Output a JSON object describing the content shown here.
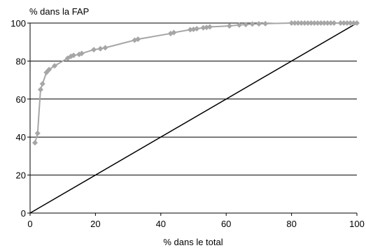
{
  "chart_data": {
    "type": "line",
    "ylabel": "% dans la FAP",
    "xlabel": "% dans le total",
    "xlim": [
      0,
      100
    ],
    "ylim": [
      0,
      100
    ],
    "x_ticks": [
      0,
      20,
      40,
      60,
      80,
      100
    ],
    "y_ticks": [
      0,
      20,
      40,
      60,
      80,
      100
    ],
    "grid": "horizontal",
    "colors": {
      "curve": "#a6a6a6",
      "diagonal": "#000000",
      "grid": "#000000"
    },
    "series": [
      {
        "values": [
          [
            1.5,
            37
          ],
          [
            2.3,
            42
          ],
          [
            3.2,
            65
          ],
          [
            3.8,
            68
          ],
          [
            5.0,
            74
          ],
          [
            5.8,
            75.5
          ],
          [
            7.5,
            77.5
          ],
          [
            11.5,
            81.5
          ],
          [
            12.5,
            82.5
          ],
          [
            13.3,
            83
          ],
          [
            15.0,
            83.5
          ],
          [
            15.8,
            84
          ],
          [
            19.5,
            86
          ],
          [
            21.5,
            86.5
          ],
          [
            23.0,
            87
          ],
          [
            32.0,
            91
          ],
          [
            33.0,
            91.5
          ],
          [
            43.0,
            94.5
          ],
          [
            44.0,
            95
          ],
          [
            49.0,
            96.5
          ],
          [
            50.0,
            96.7
          ],
          [
            51.0,
            97
          ],
          [
            53.0,
            97.5
          ],
          [
            54.0,
            97.7
          ],
          [
            55.0,
            98
          ],
          [
            61.0,
            98.5
          ],
          [
            64.0,
            99
          ],
          [
            66.0,
            99.2
          ],
          [
            68.0,
            99.5
          ],
          [
            70.0,
            99.6
          ],
          [
            72.0,
            99.7
          ],
          [
            80.0,
            100
          ],
          [
            81.0,
            100
          ],
          [
            82.0,
            100
          ],
          [
            83.0,
            100
          ],
          [
            84.0,
            100
          ],
          [
            85.0,
            100
          ],
          [
            86.0,
            100
          ],
          [
            87.0,
            100
          ],
          [
            88.0,
            100
          ],
          [
            89.0,
            100
          ],
          [
            90.0,
            100
          ],
          [
            91.0,
            100
          ],
          [
            92.0,
            100
          ],
          [
            93.0,
            100
          ],
          [
            95.0,
            100
          ],
          [
            96.0,
            100
          ],
          [
            97.0,
            100
          ],
          [
            98.0,
            100
          ],
          [
            99.0,
            100
          ],
          [
            100.0,
            100
          ]
        ]
      },
      {
        "values": [
          [
            0,
            0
          ],
          [
            100,
            100
          ]
        ]
      }
    ]
  }
}
